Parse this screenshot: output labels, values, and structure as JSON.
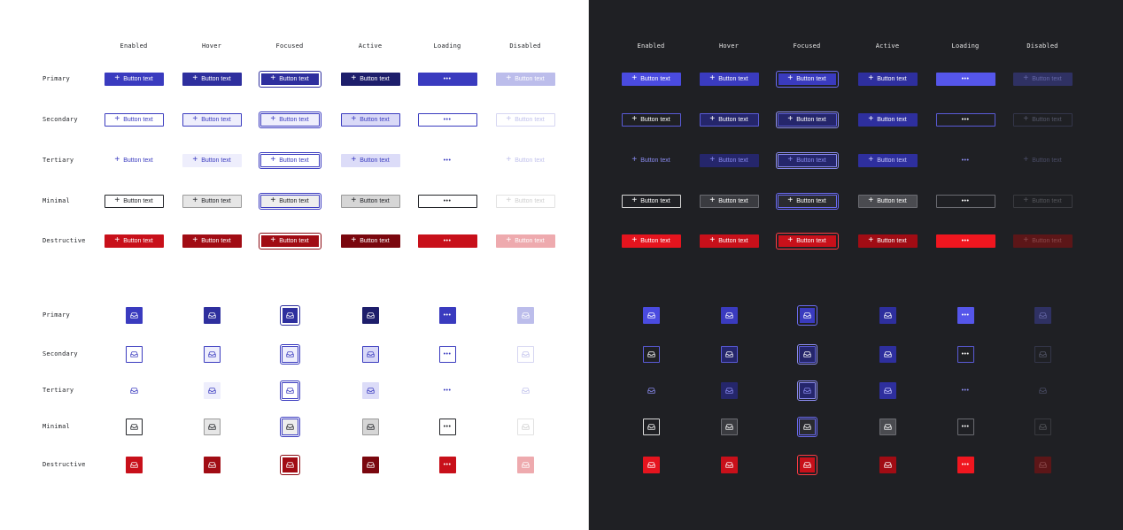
{
  "states": [
    "Enabled",
    "Hover",
    "Focused",
    "Active",
    "Loading",
    "Disabled"
  ],
  "variants": [
    "Primary",
    "Secondary",
    "Tertiary",
    "Minimal",
    "Destructive"
  ],
  "button_text": "Button text",
  "loading_indicator": "•••",
  "icons": {
    "add": "plus-icon",
    "icon_button": "inbox-icon",
    "loading": "loading-dots-icon"
  },
  "themes": {
    "light": {
      "background": "#ffffff",
      "styles": {
        "Primary": {
          "Enabled": {
            "bg": "#3a3bbf",
            "fg": "#ffffff",
            "border": "#3a3bbf"
          },
          "Hover": {
            "bg": "#2e2f9e",
            "fg": "#ffffff",
            "border": "#2e2f9e"
          },
          "Focused": {
            "bg": "#2e2f9e",
            "fg": "#ffffff",
            "border": "#ffffff",
            "ring": "#2e2f9e"
          },
          "Active": {
            "bg": "#1d1e6b",
            "fg": "#ffffff",
            "border": "#1d1e6b"
          },
          "Loading": {
            "bg": "#3a3bbf",
            "fg": "#ffffff",
            "border": "#3a3bbf"
          },
          "Disabled": {
            "bg": "#bcbdeb",
            "fg": "#ffffff",
            "border": "#bcbdeb"
          }
        },
        "Secondary": {
          "Enabled": {
            "bg": "#ffffff",
            "fg": "#3a3bbf",
            "border": "#3a3bbf"
          },
          "Hover": {
            "bg": "#eeeefc",
            "fg": "#3a3bbf",
            "border": "#3a3bbf"
          },
          "Focused": {
            "bg": "#eeeefc",
            "fg": "#3a3bbf",
            "border": "#3a3bbf",
            "ring": "#3a3bbf"
          },
          "Active": {
            "bg": "#d9d9f7",
            "fg": "#3a3bbf",
            "border": "#3a3bbf"
          },
          "Loading": {
            "bg": "#ffffff",
            "fg": "#3a3bbf",
            "border": "#3a3bbf"
          },
          "Disabled": {
            "bg": "#ffffff",
            "fg": "#c0c1ec",
            "border": "#d6d6f2"
          }
        },
        "Tertiary": {
          "Enabled": {
            "bg": "transparent",
            "fg": "#3a3bbf",
            "border": "transparent"
          },
          "Hover": {
            "bg": "#eeeefc",
            "fg": "#3a3bbf",
            "border": "transparent"
          },
          "Focused": {
            "bg": "#ffffff",
            "fg": "#3a3bbf",
            "border": "#3a3bbf",
            "ring": "#3a3bbf"
          },
          "Active": {
            "bg": "#dcdcf8",
            "fg": "#3a3bbf",
            "border": "transparent"
          },
          "Loading": {
            "bg": "transparent",
            "fg": "#3a3bbf",
            "border": "transparent"
          },
          "Disabled": {
            "bg": "transparent",
            "fg": "#c0c1ec",
            "border": "transparent"
          }
        },
        "Minimal": {
          "Enabled": {
            "bg": "#ffffff",
            "fg": "#222428",
            "border": "#222428"
          },
          "Hover": {
            "bg": "#e6e6e6",
            "fg": "#222428",
            "border": "#9a9a9a"
          },
          "Focused": {
            "bg": "#eeeeee",
            "fg": "#222428",
            "border": "#3a3bbf",
            "ring": "#3a3bbf"
          },
          "Active": {
            "bg": "#d6d6d6",
            "fg": "#222428",
            "border": "#9a9a9a"
          },
          "Loading": {
            "bg": "#ffffff",
            "fg": "#222428",
            "border": "#222428"
          },
          "Disabled": {
            "bg": "#ffffff",
            "fg": "#cfcfcf",
            "border": "#e2e2e2"
          }
        },
        "Destructive": {
          "Enabled": {
            "bg": "#c8101a",
            "fg": "#ffffff",
            "border": "#c8101a"
          },
          "Hover": {
            "bg": "#a10c14",
            "fg": "#ffffff",
            "border": "#a10c14"
          },
          "Focused": {
            "bg": "#a10c14",
            "fg": "#ffffff",
            "border": "#ffffff",
            "ring": "#8c0a12"
          },
          "Active": {
            "bg": "#7a070e",
            "fg": "#ffffff",
            "border": "#7a070e"
          },
          "Loading": {
            "bg": "#c8101a",
            "fg": "#ffffff",
            "border": "#c8101a"
          },
          "Disabled": {
            "bg": "#eeaaae",
            "fg": "#ffffff",
            "border": "#eeaaae"
          }
        }
      }
    },
    "dark": {
      "background": "#1f2024",
      "styles": {
        "Primary": {
          "Enabled": {
            "bg": "#4a4be0",
            "fg": "#ffffff",
            "border": "#4a4be0"
          },
          "Hover": {
            "bg": "#3a3bbf",
            "fg": "#ffffff",
            "border": "#3a3bbf"
          },
          "Focused": {
            "bg": "#3a3bbf",
            "fg": "#ffffff",
            "border": "#1f2024",
            "ring": "#6a6bf0"
          },
          "Active": {
            "bg": "#2e2f9e",
            "fg": "#ffffff",
            "border": "#2e2f9e"
          },
          "Loading": {
            "bg": "#5556ea",
            "fg": "#ffffff",
            "border": "#5556ea"
          },
          "Disabled": {
            "bg": "#2f3163",
            "fg": "#6567a6",
            "border": "#2f3163"
          }
        },
        "Secondary": {
          "Enabled": {
            "bg": "transparent",
            "fg": "#ffffff",
            "border": "#5a5bd8"
          },
          "Hover": {
            "bg": "#25266b",
            "fg": "#ffffff",
            "border": "#5a5bd8"
          },
          "Focused": {
            "bg": "#25266b",
            "fg": "#ffffff",
            "border": "#5a5bd8",
            "ring": "#8a8bf0"
          },
          "Active": {
            "bg": "#2e2f9e",
            "fg": "#ffffff",
            "border": "#2e2f9e"
          },
          "Loading": {
            "bg": "transparent",
            "fg": "#ffffff",
            "border": "#5a5bd8"
          },
          "Disabled": {
            "bg": "transparent",
            "fg": "#55576a",
            "border": "#34364a"
          }
        },
        "Tertiary": {
          "Enabled": {
            "bg": "transparent",
            "fg": "#8a8bf0",
            "border": "transparent"
          },
          "Hover": {
            "bg": "#25266b",
            "fg": "#8a8bf0",
            "border": "transparent"
          },
          "Focused": {
            "bg": "#25266b",
            "fg": "#8a8bf0",
            "border": "#8a8bf0",
            "ring": "#8a8bf0"
          },
          "Active": {
            "bg": "#2e2f9e",
            "fg": "#c9c9ff",
            "border": "transparent"
          },
          "Loading": {
            "bg": "transparent",
            "fg": "#8a8bf0",
            "border": "transparent"
          },
          "Disabled": {
            "bg": "transparent",
            "fg": "#4a4c66",
            "border": "transparent"
          }
        },
        "Minimal": {
          "Enabled": {
            "bg": "transparent",
            "fg": "#ffffff",
            "border": "#d9d9d9"
          },
          "Hover": {
            "bg": "#3a3b40",
            "fg": "#ffffff",
            "border": "#6b6c72"
          },
          "Focused": {
            "bg": "#2a2b30",
            "fg": "#ffffff",
            "border": "#6a6bf0",
            "ring": "#6a6bf0"
          },
          "Active": {
            "bg": "#4a4b50",
            "fg": "#ffffff",
            "border": "#6b6c72"
          },
          "Loading": {
            "bg": "transparent",
            "fg": "#ffffff",
            "border": "#6b6c72"
          },
          "Disabled": {
            "bg": "transparent",
            "fg": "#55565b",
            "border": "#3a3b40"
          }
        },
        "Destructive": {
          "Enabled": {
            "bg": "#e5141e",
            "fg": "#ffffff",
            "border": "#e5141e"
          },
          "Hover": {
            "bg": "#c8101a",
            "fg": "#ffffff",
            "border": "#c8101a"
          },
          "Focused": {
            "bg": "#c8101a",
            "fg": "#ffffff",
            "border": "#1f2024",
            "ring": "#ff3a42"
          },
          "Active": {
            "bg": "#a10c14",
            "fg": "#ffffff",
            "border": "#a10c14"
          },
          "Loading": {
            "bg": "#f0161f",
            "fg": "#ffffff",
            "border": "#f0161f"
          },
          "Disabled": {
            "bg": "#5c1618",
            "fg": "#8c4a4c",
            "border": "#5c1618"
          }
        }
      }
    }
  }
}
